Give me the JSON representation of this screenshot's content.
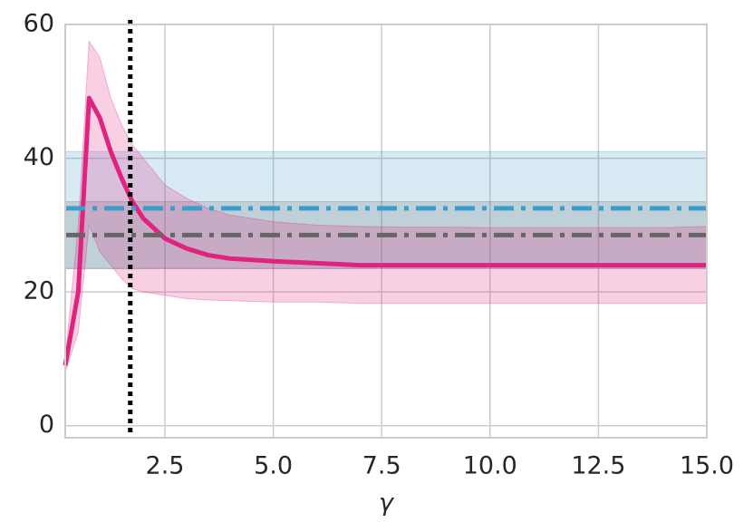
{
  "chart_data": {
    "type": "line",
    "x_label": "γ",
    "x": [
      0.2,
      0.5,
      0.75,
      1.0,
      1.25,
      1.5,
      1.75,
      2.0,
      2.5,
      3.0,
      3.5,
      4.0,
      5.0,
      6.0,
      7.0,
      8.0,
      9.0,
      10.0,
      11.0,
      12.0,
      13.0,
      14.0,
      15.0
    ],
    "series": [
      {
        "color": "#e0237f",
        "values": [
          9,
          20,
          49,
          46,
          41,
          37,
          33.5,
          31,
          28,
          26.5,
          25.5,
          25,
          24.6,
          24.3,
          24,
          24,
          24,
          24,
          24,
          24,
          24,
          24,
          24
        ],
        "upper": [
          10,
          30,
          57.5,
          55,
          49,
          45,
          42,
          40,
          36,
          34,
          32.5,
          31.5,
          30.5,
          30,
          29.8,
          29.7,
          29.7,
          29.6,
          29.6,
          29.6,
          29.6,
          29.6,
          29.8
        ],
        "lower": [
          8,
          14,
          30,
          26,
          24,
          22,
          20.5,
          20,
          19.5,
          19,
          18.8,
          18.7,
          18.5,
          18.5,
          18.3,
          18.3,
          18.3,
          18.3,
          18.3,
          18.3,
          18.3,
          18.3,
          18.3
        ]
      }
    ],
    "hlines": [
      {
        "color": "#3b9dcc",
        "value": 32.5,
        "band": [
          23.5,
          41
        ]
      },
      {
        "color": "#666666",
        "value": 28.5,
        "band": [
          23.5,
          33.5
        ]
      }
    ],
    "vline": 1.7,
    "xlim": [
      0.2,
      15
    ],
    "ylim": [
      -1.8,
      60
    ],
    "xticks": [
      2.5,
      {
        "value": 5,
        "label": "5.0"
      },
      7.5,
      {
        "value": 10,
        "label": "10.0"
      },
      12.5,
      {
        "value": 15,
        "label": "15.0"
      }
    ],
    "yticks": [
      0,
      20,
      40,
      60
    ],
    "grid": true
  }
}
